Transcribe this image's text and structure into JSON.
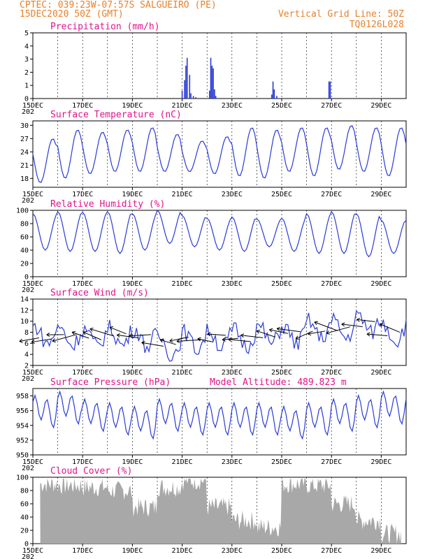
{
  "header": {
    "line1_left": "CPTEC:  039:23W-07:57S  SALGUEIRO (PE)",
    "line2_left": "15DEC2020 50Z (GMT)",
    "line1_right": "Vertical Grid Line: 50Z",
    "line2_right": "TQ0126L028",
    "color": "#e8812b"
  },
  "x_axis": {
    "days": 15,
    "tick_labels": [
      "15DEC",
      "17DEC",
      "19DEC",
      "21DEC",
      "23DEC",
      "25DEC",
      "27DEC",
      "29DEC"
    ],
    "tick_day_index": [
      0,
      2,
      4,
      6,
      8,
      10,
      12,
      14
    ],
    "year_fragment": "202"
  },
  "colors": {
    "line": "#2a3bd6",
    "bars": "#2a3bd6",
    "cloud": "#a8a8a8",
    "arrow": "#000000",
    "title": "#e0148c"
  },
  "chart_data": [
    {
      "id": "precip",
      "type": "bar",
      "title": "Precipitation (mm/h)",
      "ylim": [
        0,
        5
      ],
      "yticks": [
        0,
        1,
        2,
        3,
        4,
        5
      ],
      "x": [
        6.0,
        6.1,
        6.15,
        6.2,
        6.3,
        6.35,
        6.45,
        6.55,
        7.1,
        7.15,
        7.2,
        7.25,
        7.3,
        7.35,
        9.6,
        9.65,
        9.7,
        9.8,
        11.9,
        11.95
      ],
      "values": [
        0.6,
        1.4,
        2.5,
        3.1,
        1.8,
        0.4,
        0.2,
        0.1,
        0.6,
        3.1,
        2.5,
        2.3,
        0.7,
        0.2,
        0.3,
        1.3,
        0.7,
        0.2,
        1.3,
        1.3
      ]
    },
    {
      "id": "temp",
      "type": "line",
      "title": "Surface Temperature (nC)",
      "ylim": [
        16,
        31
      ],
      "yticks": [
        18,
        21,
        24,
        27,
        30
      ],
      "mean": 23.5,
      "amplitude": 5.7,
      "phase": 0.2,
      "points_per_day": 12,
      "daily_max": [
        27.0,
        29.0,
        28.5,
        29.0,
        29.5,
        28.0,
        26.5,
        27.5,
        29.5,
        29.0,
        29.5,
        29.5,
        30.0,
        29.5,
        29.5
      ],
      "daily_min": [
        17.0,
        18.0,
        19.0,
        19.5,
        19.5,
        19.5,
        19.5,
        19.0,
        18.5,
        18.0,
        19.5,
        18.5,
        20.0,
        19.5,
        18.5
      ]
    },
    {
      "id": "rh",
      "type": "line",
      "title": "Relative Humidity (%)",
      "ylim": [
        0,
        100
      ],
      "yticks": [
        0,
        20,
        40,
        60,
        80,
        100
      ],
      "points_per_day": 12,
      "daily_max": [
        95,
        98,
        97,
        98,
        95,
        100,
        92,
        88,
        90,
        87,
        88,
        95,
        98,
        95,
        85
      ],
      "daily_min": [
        40,
        38,
        38,
        35,
        40,
        50,
        45,
        40,
        38,
        45,
        38,
        35,
        35,
        30,
        35
      ]
    },
    {
      "id": "wind",
      "type": "line",
      "title": "Surface Wind (m/s)",
      "ylim": [
        2,
        14
      ],
      "yticks": [
        2,
        4,
        6,
        8,
        10,
        12,
        14
      ],
      "points_per_day": 12,
      "daily_mean": [
        7.5,
        7.2,
        7.0,
        7.2,
        7.0,
        5.5,
        6.5,
        6.8,
        7.0,
        7.5,
        7.5,
        8.5,
        8.5,
        9.5,
        8.0
      ],
      "arrows_per_day": 2
    },
    {
      "id": "pres",
      "type": "line",
      "title": "Surface Pressure (hPa)",
      "annotation": "Model Altitude: 489.823 m",
      "ylim": [
        950,
        959
      ],
      "yticks": [
        950,
        952,
        954,
        956,
        958
      ],
      "points_per_day": 12,
      "daily_mean": [
        956.0,
        956.5,
        955.5,
        955.0,
        954.5,
        955.5,
        955.0,
        955.0,
        955.0,
        955.0,
        954.5,
        955.0,
        955.5,
        956.0,
        956.5
      ]
    },
    {
      "id": "cloud",
      "type": "area",
      "title": "Cloud Cover (%)",
      "ylim": [
        0,
        100
      ],
      "yticks": [
        0,
        20,
        40,
        60,
        80,
        100
      ],
      "samples_per_day": 24,
      "daily_level": [
        90,
        88,
        85,
        80,
        55,
        85,
        95,
        55,
        35,
        25,
        90,
        88,
        60,
        35,
        15
      ]
    }
  ]
}
